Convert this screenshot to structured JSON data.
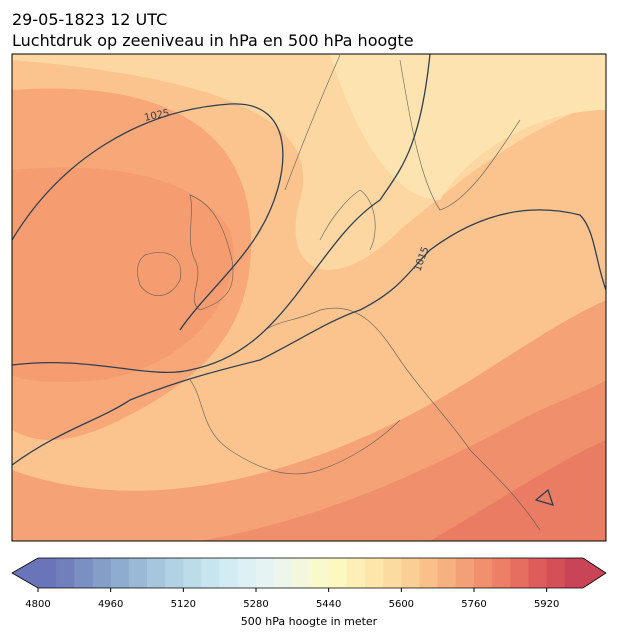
{
  "title": {
    "line1": "29-05-1823 12 UTC",
    "line2": "Luchtdruk op zeeniveau in hPa en 500 hPa hoogte"
  },
  "map": {
    "contour_labels": [
      1025,
      1015
    ]
  },
  "colorbar": {
    "label": "500 hPa hoogte in meter",
    "lim": [
      4800,
      6000
    ],
    "ticks": [
      4800,
      4960,
      5120,
      5280,
      5440,
      5600,
      5760,
      5920
    ],
    "extend": "both",
    "colors": [
      "#6a74b8",
      "#7080bc",
      "#7a8fc2",
      "#849ec8",
      "#8eaccf",
      "#99b9d5",
      "#a5c6dc",
      "#b0d2e3",
      "#bcdcea",
      "#c8e5ef",
      "#d3ecf3",
      "#ddf1f5",
      "#e5f4f3",
      "#ecf6ea",
      "#f3f8dd",
      "#f9f9cc",
      "#fdf7c0",
      "#fdefb5",
      "#fde6aa",
      "#fcdba0",
      "#fbce95",
      "#f9c08a",
      "#f7b07f",
      "#f4a076",
      "#f0906d",
      "#ec7f66",
      "#e66e60",
      "#de5d5b",
      "#d44f58",
      "#c84456"
    ]
  }
}
